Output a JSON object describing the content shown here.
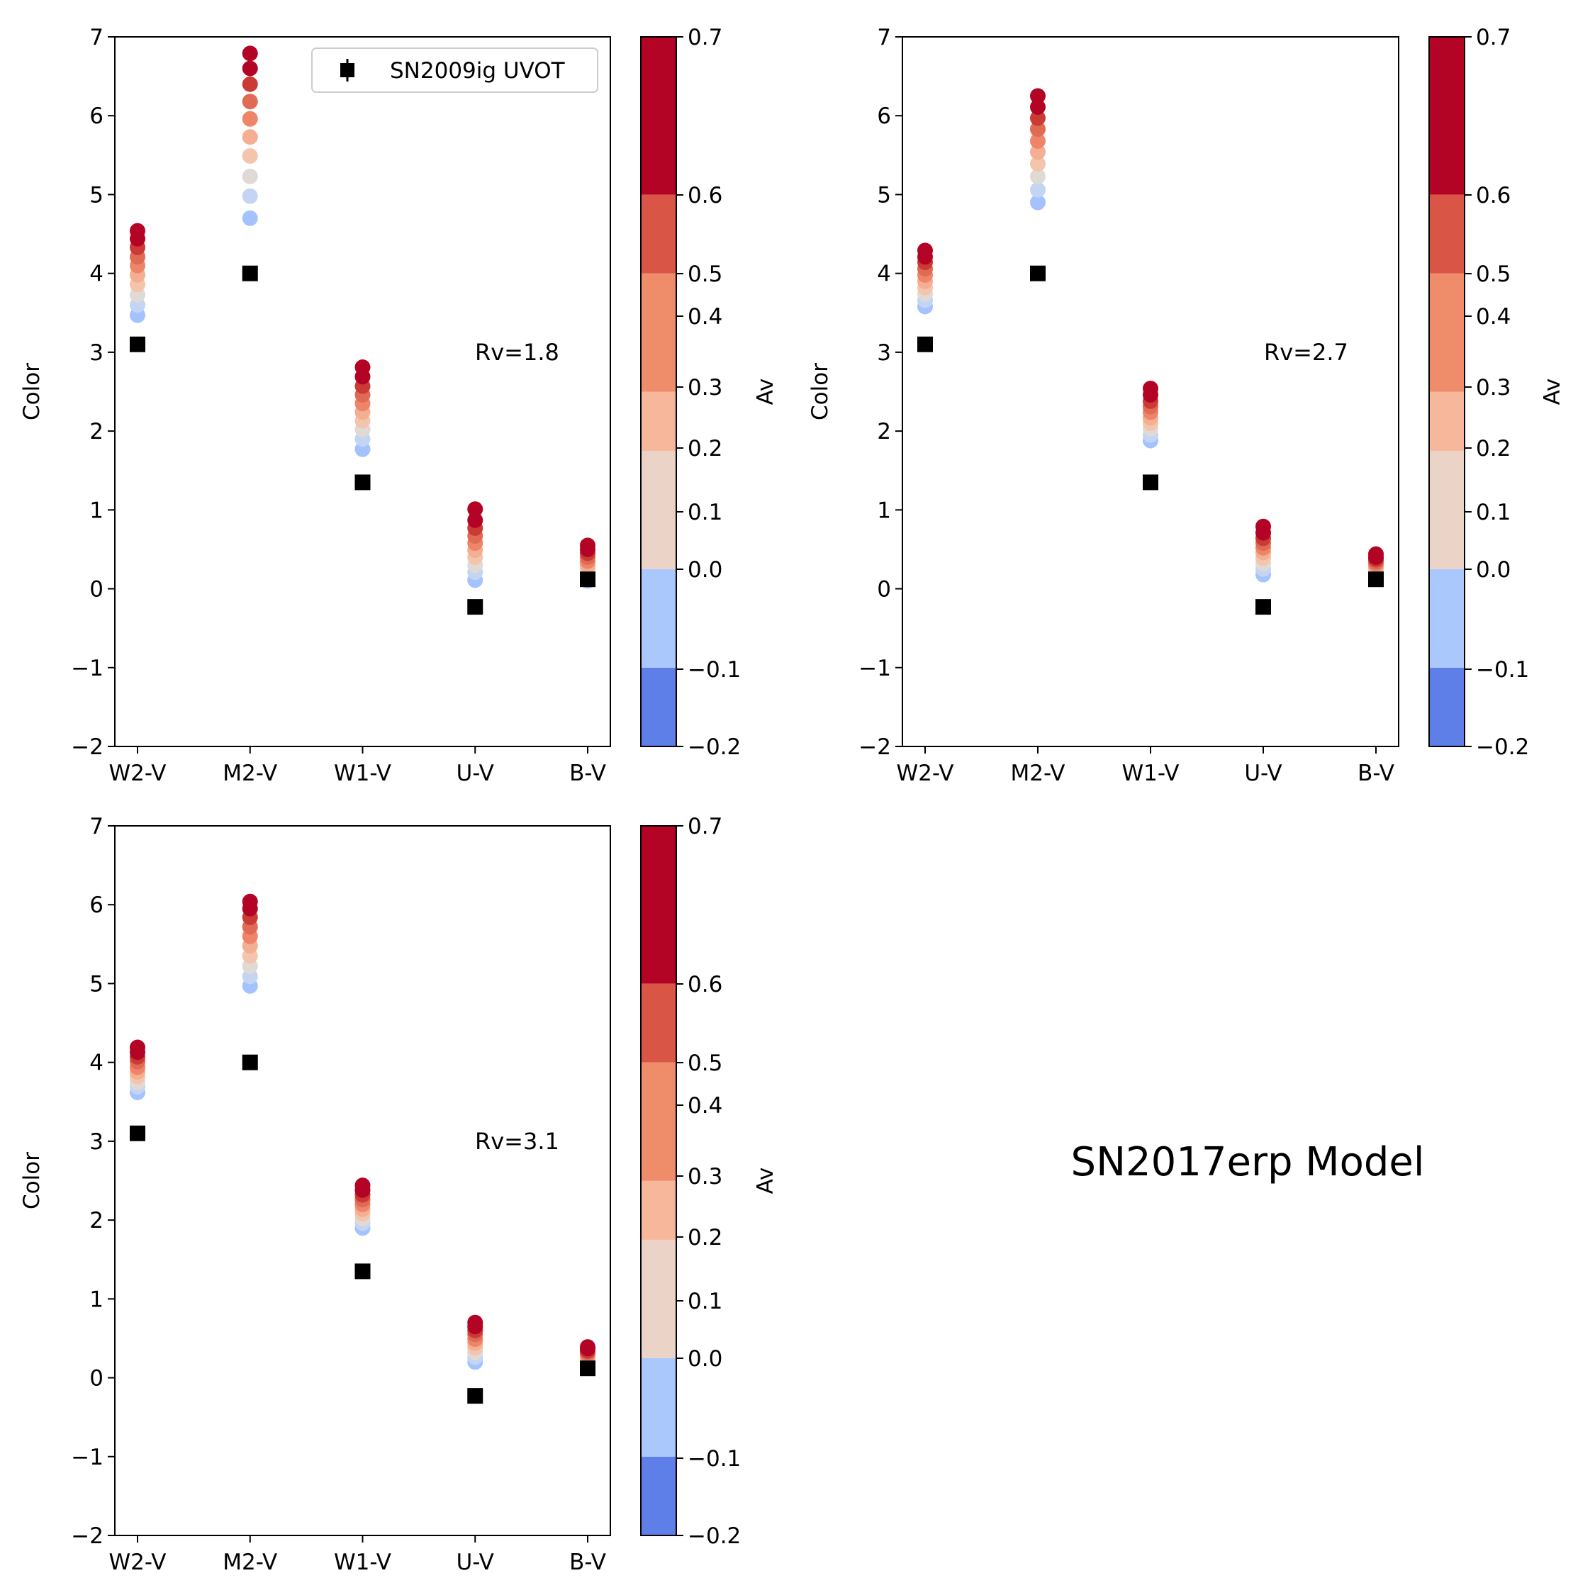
{
  "figure": {
    "title": "SN2017erp Model"
  },
  "colors": {
    "observed": "#000000",
    "colorbar_bins": [
      "#5f7fe8",
      "#aac8fb",
      "#ebd3c7",
      "#f6b79a",
      "#ef8c6a",
      "#d95546",
      "#b40426"
    ],
    "point_ramp": [
      "#a3c2fe",
      "#c4d5f3",
      "#e0dad6",
      "#f3c5ac",
      "#f4ae91",
      "#ee8468",
      "#e16a54",
      "#cb3b35",
      "#b40426",
      "#b40426"
    ]
  },
  "chart_data": [
    {
      "type": "scatter",
      "annotation": "Rv=1.8",
      "ylabel": "Color",
      "colorbar_label": "Av",
      "categories": [
        "W2-V",
        "M2-V",
        "W1-V",
        "U-V",
        "B-V"
      ],
      "ylim": [
        -2,
        7
      ],
      "yticks": [
        -2,
        -1,
        0,
        1,
        2,
        3,
        4,
        5,
        6,
        7
      ],
      "ytick_labels": [
        "−2",
        "−1",
        "0",
        "1",
        "2",
        "3",
        "4",
        "5",
        "6",
        "7"
      ],
      "colorbar_ticks": [
        -0.2,
        -0.1,
        0.0,
        0.1,
        0.2,
        0.3,
        0.4,
        0.5,
        0.6,
        0.7
      ],
      "colorbar_tick_labels": [
        "−0.2",
        "−0.1",
        "0.0",
        "0.1",
        "0.2",
        "0.3",
        "0.4",
        "0.5",
        "0.6",
        "0.7"
      ],
      "colorbar_bounds": [
        -0.2,
        -0.1,
        0.025,
        0.175,
        0.25,
        0.4,
        0.5,
        0.7
      ],
      "legend": {
        "label": "SN2009ig UVOT",
        "placement": "upper right"
      },
      "observed": {
        "name": "SN2009ig UVOT",
        "values": [
          3.1,
          4.0,
          1.35,
          -0.23,
          0.12
        ]
      },
      "model_series": [
        {
          "values": [
            3.47,
            4.7,
            1.77,
            0.11,
            0.1
          ]
        },
        {
          "values": [
            3.6,
            4.98,
            1.9,
            0.21,
            0.15
          ]
        },
        {
          "values": [
            3.73,
            5.23,
            2.02,
            0.3,
            0.2
          ]
        },
        {
          "values": [
            3.86,
            5.49,
            2.13,
            0.4,
            0.25
          ]
        },
        {
          "values": [
            3.98,
            5.73,
            2.24,
            0.49,
            0.3
          ]
        },
        {
          "values": [
            4.1,
            5.96,
            2.35,
            0.58,
            0.35
          ]
        },
        {
          "values": [
            4.21,
            6.18,
            2.46,
            0.67,
            0.4
          ]
        },
        {
          "values": [
            4.33,
            6.4,
            2.57,
            0.77,
            0.45
          ]
        },
        {
          "values": [
            4.44,
            6.6,
            2.69,
            0.87,
            0.5
          ]
        },
        {
          "values": [
            4.54,
            6.79,
            2.81,
            1.01,
            0.55
          ]
        }
      ]
    },
    {
      "type": "scatter",
      "annotation": "Rv=2.7",
      "ylabel": "Color",
      "colorbar_label": "Av",
      "categories": [
        "W2-V",
        "M2-V",
        "W1-V",
        "U-V",
        "B-V"
      ],
      "ylim": [
        -2,
        7
      ],
      "yticks": [
        -2,
        -1,
        0,
        1,
        2,
        3,
        4,
        5,
        6,
        7
      ],
      "ytick_labels": [
        "−2",
        "−1",
        "0",
        "1",
        "2",
        "3",
        "4",
        "5",
        "6",
        "7"
      ],
      "colorbar_ticks": [
        -0.2,
        -0.1,
        0.0,
        0.1,
        0.2,
        0.3,
        0.4,
        0.5,
        0.6,
        0.7
      ],
      "colorbar_tick_labels": [
        "−0.2",
        "−0.1",
        "0.0",
        "0.1",
        "0.2",
        "0.3",
        "0.4",
        "0.5",
        "0.6",
        "0.7"
      ],
      "colorbar_bounds": [
        -0.2,
        -0.1,
        0.025,
        0.175,
        0.25,
        0.4,
        0.5,
        0.7
      ],
      "observed": {
        "values": [
          3.1,
          4.0,
          1.35,
          -0.23,
          0.12
        ]
      },
      "model_series": [
        {
          "values": [
            3.58,
            4.9,
            1.88,
            0.18,
            0.16
          ]
        },
        {
          "values": [
            3.66,
            5.06,
            1.95,
            0.25,
            0.19
          ]
        },
        {
          "values": [
            3.74,
            5.23,
            2.03,
            0.32,
            0.22
          ]
        },
        {
          "values": [
            3.82,
            5.39,
            2.1,
            0.39,
            0.25
          ]
        },
        {
          "values": [
            3.9,
            5.54,
            2.17,
            0.46,
            0.28
          ]
        },
        {
          "values": [
            3.98,
            5.68,
            2.24,
            0.52,
            0.31
          ]
        },
        {
          "values": [
            4.06,
            5.83,
            2.31,
            0.58,
            0.34
          ]
        },
        {
          "values": [
            4.14,
            5.97,
            2.38,
            0.64,
            0.37
          ]
        },
        {
          "values": [
            4.21,
            6.11,
            2.46,
            0.71,
            0.4
          ]
        },
        {
          "values": [
            4.29,
            6.25,
            2.54,
            0.79,
            0.44
          ]
        }
      ]
    },
    {
      "type": "scatter",
      "annotation": "Rv=3.1",
      "ylabel": "Color",
      "colorbar_label": "Av",
      "categories": [
        "W2-V",
        "M2-V",
        "W1-V",
        "U-V",
        "B-V"
      ],
      "ylim": [
        -2,
        7
      ],
      "yticks": [
        -2,
        -1,
        0,
        1,
        2,
        3,
        4,
        5,
        6,
        7
      ],
      "ytick_labels": [
        "−2",
        "−1",
        "0",
        "1",
        "2",
        "3",
        "4",
        "5",
        "6",
        "7"
      ],
      "colorbar_ticks": [
        -0.2,
        -0.1,
        0.0,
        0.1,
        0.2,
        0.3,
        0.4,
        0.5,
        0.6,
        0.7
      ],
      "colorbar_tick_labels": [
        "−0.2",
        "−0.1",
        "0.0",
        "0.1",
        "0.2",
        "0.3",
        "0.4",
        "0.5",
        "0.6",
        "0.7"
      ],
      "colorbar_bounds": [
        -0.2,
        -0.1,
        0.025,
        0.175,
        0.25,
        0.4,
        0.5,
        0.7
      ],
      "observed": {
        "values": [
          3.1,
          4.0,
          1.35,
          -0.23,
          0.12
        ]
      },
      "model_series": [
        {
          "values": [
            3.62,
            4.97,
            1.9,
            0.2,
            0.17
          ]
        },
        {
          "values": [
            3.69,
            5.09,
            1.96,
            0.26,
            0.19
          ]
        },
        {
          "values": [
            3.75,
            5.22,
            2.02,
            0.32,
            0.22
          ]
        },
        {
          "values": [
            3.82,
            5.35,
            2.08,
            0.38,
            0.24
          ]
        },
        {
          "values": [
            3.88,
            5.48,
            2.14,
            0.44,
            0.27
          ]
        },
        {
          "values": [
            3.94,
            5.6,
            2.2,
            0.49,
            0.29
          ]
        },
        {
          "values": [
            4.01,
            5.72,
            2.26,
            0.55,
            0.32
          ]
        },
        {
          "values": [
            4.07,
            5.84,
            2.32,
            0.6,
            0.34
          ]
        },
        {
          "values": [
            4.13,
            5.95,
            2.38,
            0.65,
            0.37
          ]
        },
        {
          "values": [
            4.19,
            6.04,
            2.44,
            0.7,
            0.39
          ]
        }
      ]
    }
  ]
}
